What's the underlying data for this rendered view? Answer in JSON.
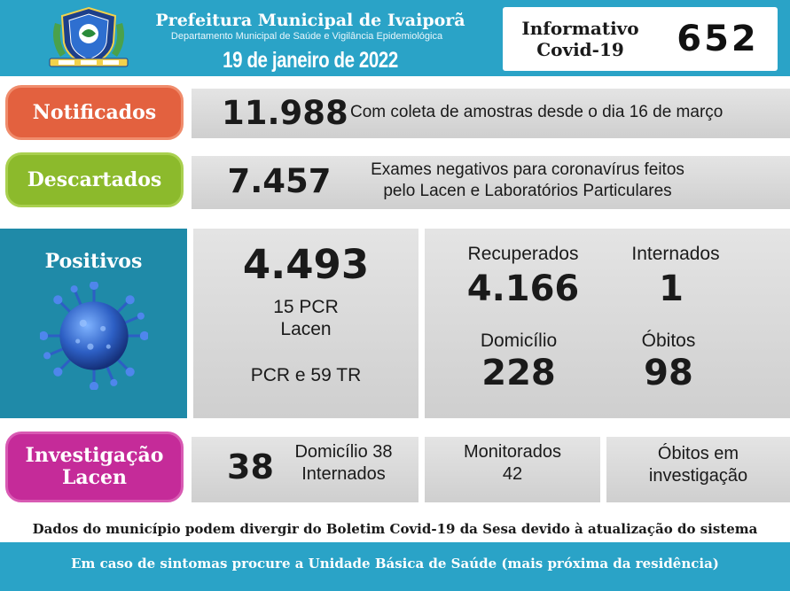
{
  "header": {
    "title": "Prefeitura Municipal de Ivaiporã",
    "subtitle": "Departamento Municipal de Saúde e Vigilância Epidemiológica",
    "date": "19 de janeiro de 2022",
    "badge_label_line1": "Informativo",
    "badge_label_line2": "Covid-19",
    "badge_number": "652",
    "crest_icon": "municipal-crest-icon",
    "colors": {
      "header_bg": "#2aa3c7"
    }
  },
  "notificados": {
    "label": "Notificados",
    "value": "11.988",
    "description": "Com coleta de amostras desde o dia 16 de março",
    "color": "#e3613f"
  },
  "descartados": {
    "label": "Descartados",
    "value": "7.457",
    "description_line1": "Exames negativos para coronavírus feitos",
    "description_line2": "pelo Lacen e Laboratórios Particulares",
    "color": "#8cba2c"
  },
  "positivos": {
    "label": "Positivos",
    "value": "4.493",
    "line1": "15 PCR",
    "line2": "Lacen",
    "line3": "PCR e 59 TR",
    "icon": "coronavirus-icon",
    "color": "#1f8aa8",
    "recuperados_label": "Recuperados",
    "recuperados_value": "4.166",
    "internados_label": "Internados",
    "internados_value": "1",
    "domicilio_label": "Domicílio",
    "domicilio_value": "228",
    "obitos_label": "Óbitos",
    "obitos_value": "98"
  },
  "investigacao": {
    "label_line1": "Investigação",
    "label_line2": "Lacen",
    "value": "38",
    "detail_line1": "Domicílio 38",
    "detail_line2": "Internados",
    "monitorados_label": "Monitorados",
    "monitorados_value": "42",
    "obitos_line1": "Óbitos em",
    "obitos_line2": "investigação",
    "color": "#c52b99"
  },
  "disclaimer": "Dados do município podem divergir do Boletim Covid-19 da Sesa devido à atualização do sistema",
  "footer": "Em caso de sintomas procure a Unidade Básica de Saúde (mais próxima da residência)"
}
